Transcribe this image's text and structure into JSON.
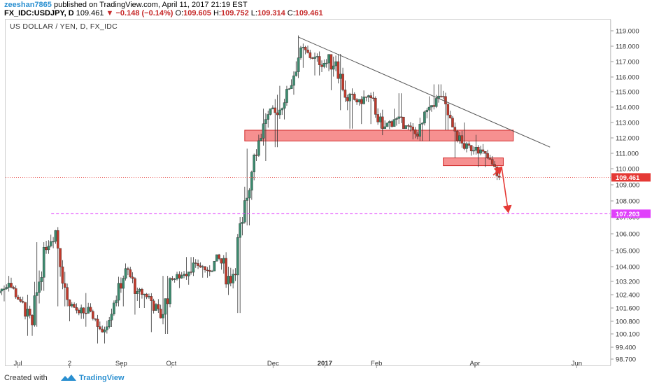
{
  "header": {
    "user": "zeeshan7865",
    "published": "published on TradingView.com, April 11, 2017 21:19 EST",
    "symbol": "FX_IDC:USDJPY, D",
    "last": "109.461",
    "change": "−0.148 (−0.14%)",
    "o_label": "O:",
    "o_val": "109.605",
    "h_label": "H:",
    "h_val": "109.752",
    "l_label": "L:",
    "l_val": "109.314",
    "c_label": "C:",
    "c_val": "109.461"
  },
  "chart_title": "US DOLLAR / YEN, D, FX_IDC",
  "footer": {
    "created": "Created with",
    "brand": "TradingView"
  },
  "colors": {
    "up": "#3b8a6e",
    "down": "#c0392b",
    "zone_fill": "#f47c7c",
    "zone_stroke": "#d32f2f",
    "target_line": "#e040fb",
    "trend_line": "#555555",
    "arrow": "#e53935",
    "price_marker": "#e53935"
  },
  "chart_data": {
    "type": "candlestick",
    "title": "US DOLLAR / YEN, D, FX_IDC",
    "y_ticks": [
      "119.000",
      "118.000",
      "117.000",
      "116.000",
      "115.000",
      "114.000",
      "113.000",
      "112.000",
      "111.000",
      "110.000",
      "109.000",
      "108.000",
      "107.000",
      "106.000",
      "105.000",
      "104.000",
      "103.200",
      "102.400",
      "101.600",
      "100.800",
      "100.100",
      "99.400",
      "98.700"
    ],
    "x_ticks": [
      "Jul",
      "2",
      "Sep",
      "Oct",
      "Dec",
      "2017",
      "Feb",
      "Apr",
      "Jun"
    ],
    "current_price": "109.461",
    "target_price": "107.203",
    "resistance_zones": [
      {
        "label": "upper zone",
        "from_date": "2016-11-14",
        "to_date": "2017-04-24",
        "low": 111.8,
        "high": 112.5
      },
      {
        "label": "lower zone",
        "from_date": "2017-03-13",
        "to_date": "2017-04-18",
        "low": 110.2,
        "high": 110.7
      }
    ],
    "trend_line": [
      {
        "date": "2016-12-16",
        "price": 118.6
      },
      {
        "date": "2017-05-16",
        "price": 111.4
      }
    ],
    "projection": [
      {
        "date": "2017-04-12",
        "price": 109.6
      },
      {
        "date": "2017-04-17",
        "price": 110.1
      },
      {
        "date": "2017-04-21",
        "price": 107.3
      }
    ],
    "ohlc": [
      [
        "2016-06-20",
        102.5,
        103.5,
        102.0,
        103.1
      ],
      [
        "2016-06-27",
        103.1,
        103.4,
        101.5,
        102.0
      ],
      [
        "2016-07-04",
        102.0,
        102.4,
        100.0,
        100.6
      ],
      [
        "2016-07-11",
        100.6,
        105.5,
        100.5,
        105.2
      ],
      [
        "2016-07-18",
        105.2,
        107.5,
        104.8,
        106.2
      ],
      [
        "2016-07-25",
        106.2,
        106.5,
        101.7,
        102.1
      ],
      [
        "2016-08-01",
        102.1,
        102.3,
        100.8,
        101.3
      ],
      [
        "2016-08-08",
        101.3,
        102.5,
        100.5,
        101.4
      ],
      [
        "2016-08-15",
        101.4,
        101.5,
        99.6,
        100.2
      ],
      [
        "2016-08-22",
        100.2,
        102.1,
        99.6,
        101.9
      ],
      [
        "2016-08-29",
        101.9,
        104.2,
        101.7,
        103.9
      ],
      [
        "2016-09-05",
        103.9,
        104.0,
        101.2,
        102.6
      ],
      [
        "2016-09-12",
        102.6,
        103.0,
        101.6,
        102.3
      ],
      [
        "2016-09-19",
        102.3,
        102.5,
        100.2,
        101.0
      ],
      [
        "2016-09-26",
        101.0,
        103.5,
        100.1,
        103.3
      ],
      [
        "2016-10-03",
        103.3,
        104.0,
        102.8,
        103.6
      ],
      [
        "2016-10-10",
        103.6,
        104.6,
        103.0,
        104.2
      ],
      [
        "2016-10-17",
        104.2,
        104.9,
        103.4,
        103.8
      ],
      [
        "2016-10-24",
        103.8,
        105.5,
        103.3,
        104.5
      ],
      [
        "2016-10-31",
        104.5,
        104.9,
        101.2,
        103.1
      ],
      [
        "2016-11-07",
        103.1,
        107.0,
        101.3,
        106.7
      ],
      [
        "2016-11-14",
        106.7,
        111.3,
        106.5,
        110.9
      ],
      [
        "2016-11-21",
        110.9,
        113.9,
        110.5,
        113.2
      ],
      [
        "2016-11-28",
        113.2,
        114.8,
        111.4,
        113.5
      ],
      [
        "2016-12-05",
        113.5,
        115.4,
        113.2,
        115.2
      ],
      [
        "2016-12-12",
        115.2,
        118.7,
        114.8,
        117.9
      ],
      [
        "2016-12-19",
        117.9,
        118.3,
        116.6,
        117.2
      ],
      [
        "2016-12-26",
        117.2,
        118.2,
        116.1,
        116.9
      ],
      [
        "2017-01-02",
        116.9,
        118.6,
        115.1,
        117.0
      ],
      [
        "2017-01-09",
        117.0,
        117.5,
        113.8,
        114.4
      ],
      [
        "2017-01-16",
        114.4,
        115.6,
        112.6,
        114.5
      ],
      [
        "2017-01-23",
        114.5,
        115.4,
        112.9,
        114.6
      ],
      [
        "2017-01-30",
        114.6,
        115.0,
        112.1,
        112.6
      ],
      [
        "2017-02-06",
        112.6,
        113.9,
        111.6,
        113.2
      ],
      [
        "2017-02-13",
        113.2,
        114.9,
        112.6,
        112.8
      ],
      [
        "2017-02-20",
        112.8,
        113.7,
        111.9,
        112.1
      ],
      [
        "2017-02-27",
        112.1,
        114.7,
        111.8,
        114.0
      ],
      [
        "2017-03-06",
        114.0,
        115.5,
        113.5,
        114.7
      ],
      [
        "2017-03-13",
        114.7,
        115.1,
        112.5,
        112.7
      ],
      [
        "2017-03-20",
        112.7,
        113.0,
        110.7,
        111.3
      ],
      [
        "2017-03-27",
        111.3,
        112.2,
        110.3,
        111.4
      ],
      [
        "2017-04-03",
        111.4,
        111.6,
        110.1,
        110.7
      ],
      [
        "2017-04-10",
        110.7,
        110.9,
        109.3,
        109.46
      ]
    ]
  }
}
